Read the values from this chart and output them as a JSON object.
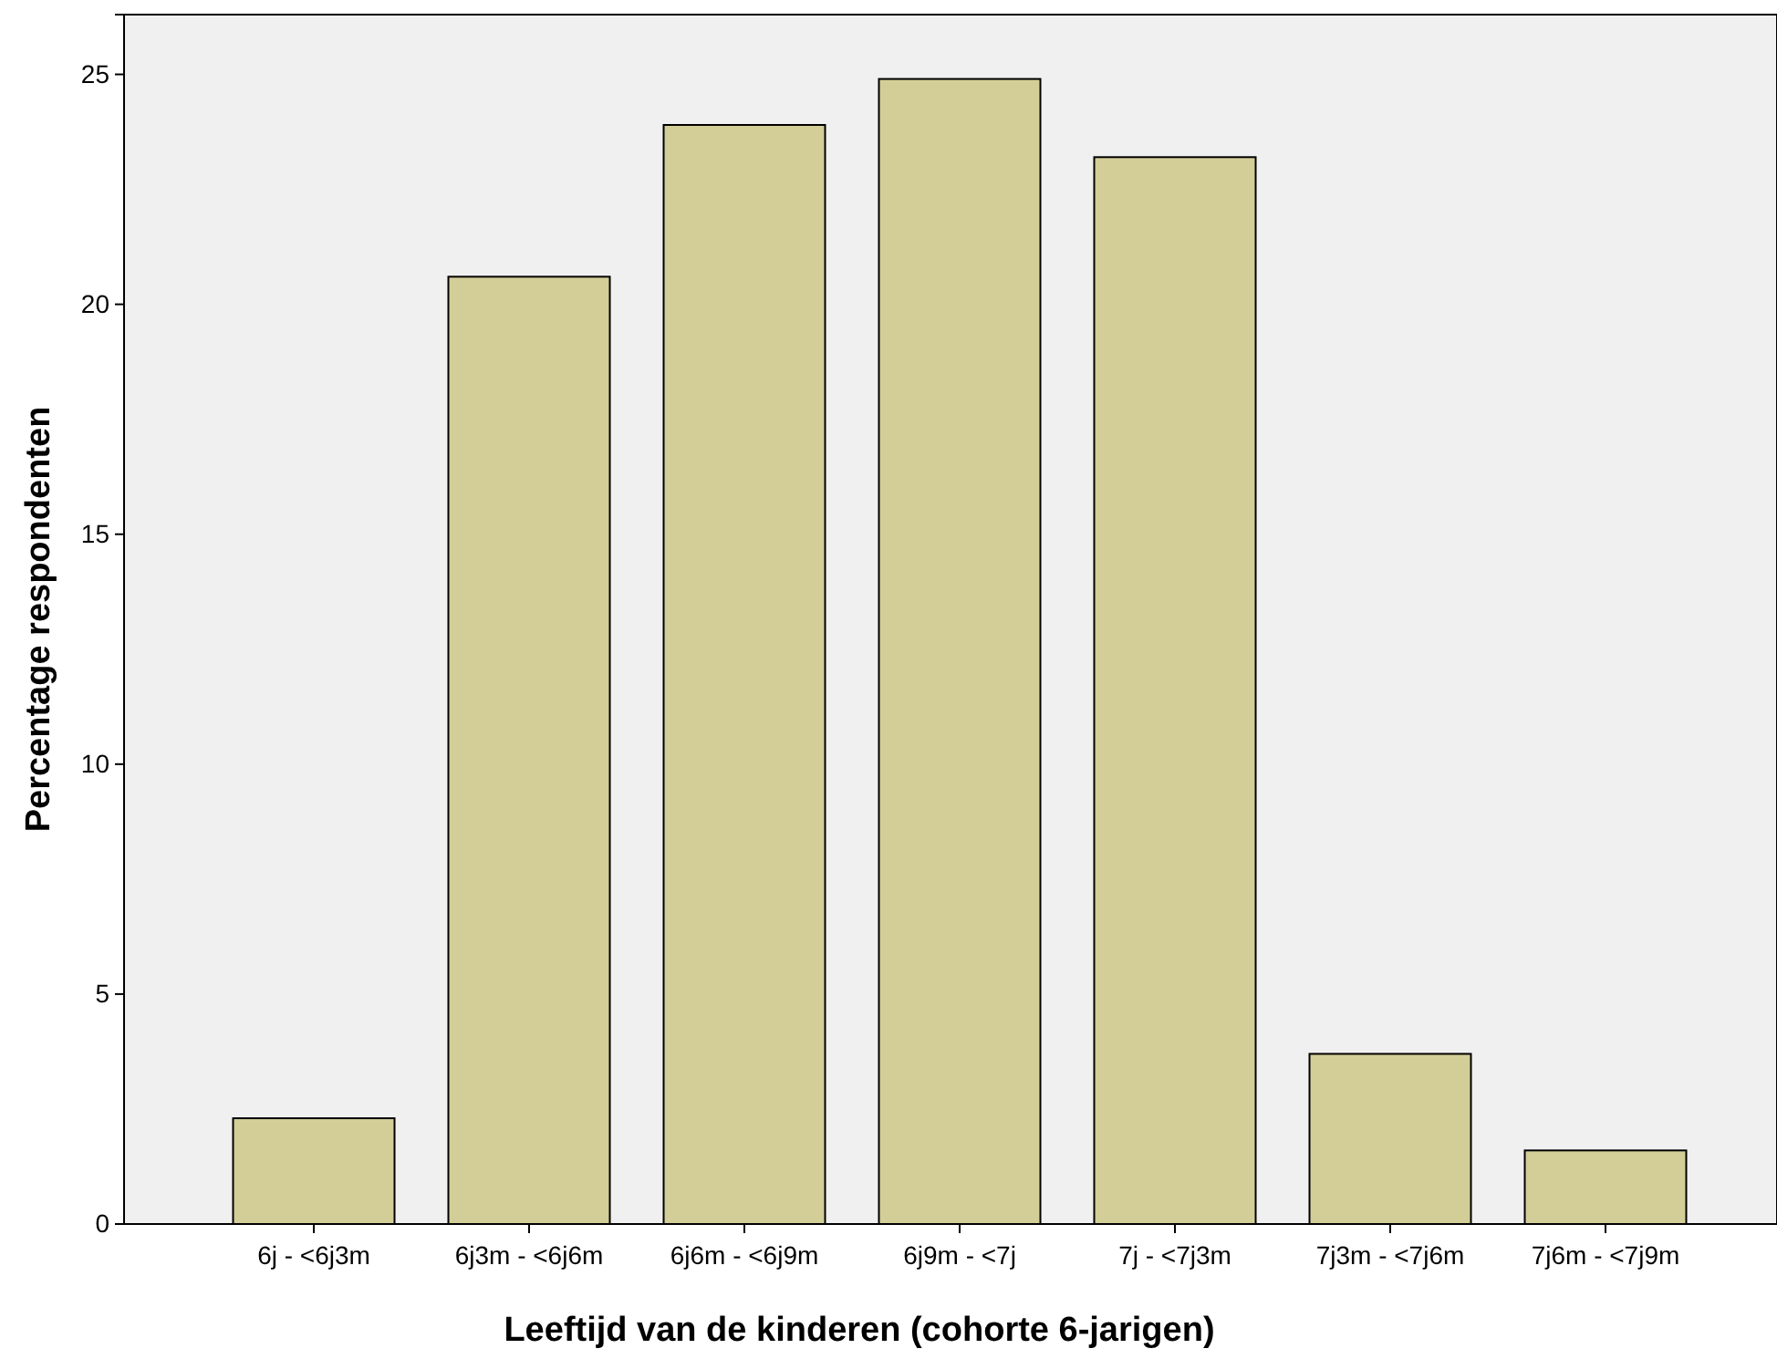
{
  "chart_data": {
    "type": "bar",
    "xlabel": "Leeftijd van de kinderen (cohorte 6-jarigen)",
    "ylabel": "Percentage respondenten",
    "categories": [
      "6j - <6j3m",
      "6j3m - <6j6m",
      "6j6m - <6j9m",
      "6j9m - <7j",
      "7j - <7j3m",
      "7j3m - <7j6m",
      "7j6m - <7j9m"
    ],
    "values": [
      2.3,
      20.6,
      23.9,
      24.9,
      23.2,
      3.7,
      1.6
    ],
    "color": "#d3ce97",
    "ylim": [
      0,
      26.3
    ],
    "yticks": [
      0,
      5,
      10,
      15,
      20,
      25
    ]
  }
}
